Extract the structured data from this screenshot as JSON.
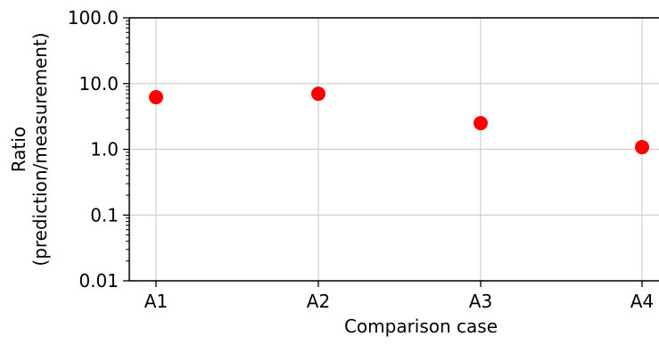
{
  "chart_data": {
    "type": "scatter",
    "title": "",
    "xlabel": "Comparison case",
    "ylabel_lines": [
      "Ratio",
      "(prediction/measurement)"
    ],
    "categories": [
      "A1",
      "A2",
      "A3",
      "A4"
    ],
    "series": [
      {
        "values": [
          6.2,
          7.0,
          2.5,
          1.08
        ],
        "color": "#ff0000",
        "marker": "circle"
      }
    ],
    "y_scale": "log",
    "ylim": [
      0.01,
      100.0
    ],
    "y_ticks": [
      0.01,
      0.1,
      1.0,
      10.0,
      100.0
    ],
    "y_tick_labels": [
      "0.01",
      "0.1",
      "1.0",
      "10.0",
      "100.0"
    ],
    "grid": true,
    "legend": "none"
  }
}
